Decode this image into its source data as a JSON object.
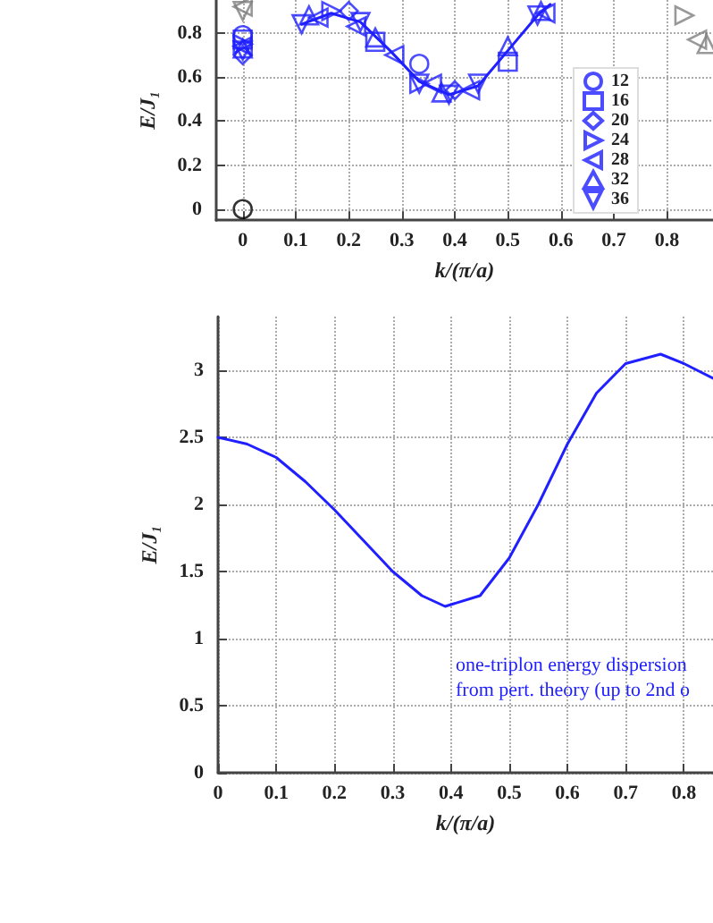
{
  "chart_data": [
    {
      "type": "scatter",
      "xlabel": "k/(π/a)",
      "ylabel": "E/J₁",
      "xlim": [
        -0.05,
        0.887
      ],
      "ylim": [
        -0.05,
        0.95
      ],
      "xticks": [
        0,
        0.1,
        0.2,
        0.3,
        0.4,
        0.5,
        0.6,
        0.7,
        0.8
      ],
      "yticks": [
        0,
        0.2,
        0.4,
        0.6,
        0.8
      ],
      "grid": true,
      "legend": "right",
      "series": [
        {
          "type": "line",
          "color": "#1f1fff",
          "marker": "none",
          "x": [
            0.111,
            0.167,
            0.222,
            0.278,
            0.333,
            0.389,
            0.444,
            0.5,
            0.556,
            0.58
          ],
          "values": [
            0.84,
            0.89,
            0.85,
            0.72,
            0.58,
            0.52,
            0.56,
            0.72,
            0.88,
            0.93
          ]
        },
        {
          "name": "12",
          "color": "#1f1fff",
          "marker": "circle",
          "x": [
            0,
            0.333
          ],
          "values": [
            0.79,
            0.66
          ]
        },
        {
          "name": "16",
          "color": "#1f1fff",
          "marker": "square",
          "x": [
            0,
            0.25,
            0.5
          ],
          "values": [
            0.77,
            0.76,
            0.67
          ]
        },
        {
          "name": "20",
          "color": "#1f1fff",
          "marker": "diamond",
          "x": [
            0,
            0.2,
            0.4
          ],
          "values": [
            0.7,
            0.9,
            0.54
          ]
        },
        {
          "name": "24",
          "color": "#1f1fff",
          "marker": "triangle-right",
          "x": [
            0,
            0.167,
            0.333
          ],
          "values": [
            0.75,
            0.9,
            0.57
          ]
        },
        {
          "name": "28",
          "color": "#1f1fff",
          "marker": "triangle-left",
          "x": [
            0,
            0.143,
            0.214,
            0.286,
            0.357,
            0.429,
            0.571
          ],
          "values": [
            0.74,
            0.87,
            0.83,
            0.7,
            0.57,
            0.54,
            0.89
          ]
        },
        {
          "name": "32",
          "color": "#1f1fff",
          "marker": "triangle",
          "x": [
            0,
            0.125,
            0.25,
            0.375,
            0.5,
            0.5625
          ],
          "values": [
            0.73,
            0.88,
            0.78,
            0.53,
            0.74,
            0.9
          ]
        },
        {
          "name": "36",
          "color": "#1f1fff",
          "marker": "triangle-down",
          "x": [
            0,
            0.111,
            0.222,
            0.333,
            0.389,
            0.444,
            0.556
          ],
          "values": [
            0.72,
            0.84,
            0.85,
            0.57,
            0.52,
            0.57,
            0.88
          ]
        },
        {
          "color": "#000000",
          "marker": "circle",
          "x": [
            0
          ],
          "values": [
            0
          ]
        },
        {
          "color": "#808080",
          "marker": "triangle-right",
          "x": [
            0.833
          ],
          "values": [
            0.88
          ]
        },
        {
          "color": "#808080",
          "marker": "triangle-left",
          "x": [
            0,
            0.857
          ],
          "values": [
            0.92,
            0.77
          ]
        },
        {
          "color": "#808080",
          "marker": "triangle-down",
          "x": [
            0
          ],
          "values": [
            0.9
          ]
        },
        {
          "color": "#808080",
          "marker": "triangle",
          "x": [
            0.875
          ],
          "values": [
            0.75
          ]
        }
      ]
    },
    {
      "type": "line",
      "xlabel": "k/(π/a)",
      "ylabel": "E/J₁",
      "xlim": [
        0,
        0.85
      ],
      "ylim": [
        0,
        3.4
      ],
      "xticks": [
        0,
        0.1,
        0.2,
        0.3,
        0.4,
        0.5,
        0.6,
        0.7,
        0.8
      ],
      "yticks": [
        0,
        0.5,
        1,
        1.5,
        2,
        2.5,
        3
      ],
      "grid": true,
      "marker": "none",
      "line_style": "solid",
      "annotations": [
        "one-triplon energy dispersion\nfrom pert. theory (up to 2nd o"
      ],
      "series": [
        {
          "color": "#1f1fff",
          "x": [
            0,
            0.05,
            0.1,
            0.15,
            0.2,
            0.25,
            0.3,
            0.35,
            0.39,
            0.45,
            0.5,
            0.55,
            0.6,
            0.65,
            0.7,
            0.76,
            0.8,
            0.85
          ],
          "values": [
            2.5,
            2.45,
            2.35,
            2.17,
            1.96,
            1.73,
            1.5,
            1.32,
            1.24,
            1.32,
            1.6,
            2.0,
            2.45,
            2.83,
            3.05,
            3.12,
            3.05,
            2.94
          ]
        }
      ]
    }
  ]
}
